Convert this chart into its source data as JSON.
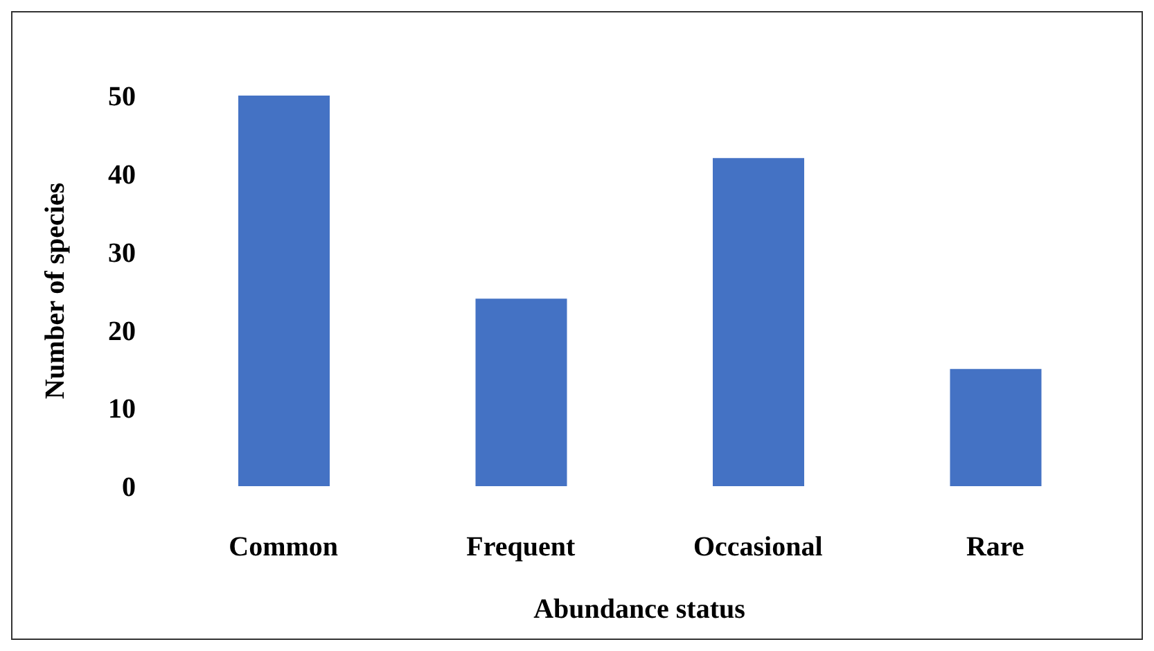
{
  "chart_data": {
    "type": "bar",
    "xlabel": "Abundance status",
    "ylabel": "Number of species",
    "categories": [
      "Common",
      "Frequent",
      "Occasional",
      "Rare"
    ],
    "values": [
      50,
      24,
      42,
      15
    ],
    "color": "#4472c4",
    "ylim": [
      0,
      50
    ],
    "yticks": [
      0,
      10,
      20,
      30,
      40,
      50
    ],
    "grid": false,
    "legend": false
  }
}
